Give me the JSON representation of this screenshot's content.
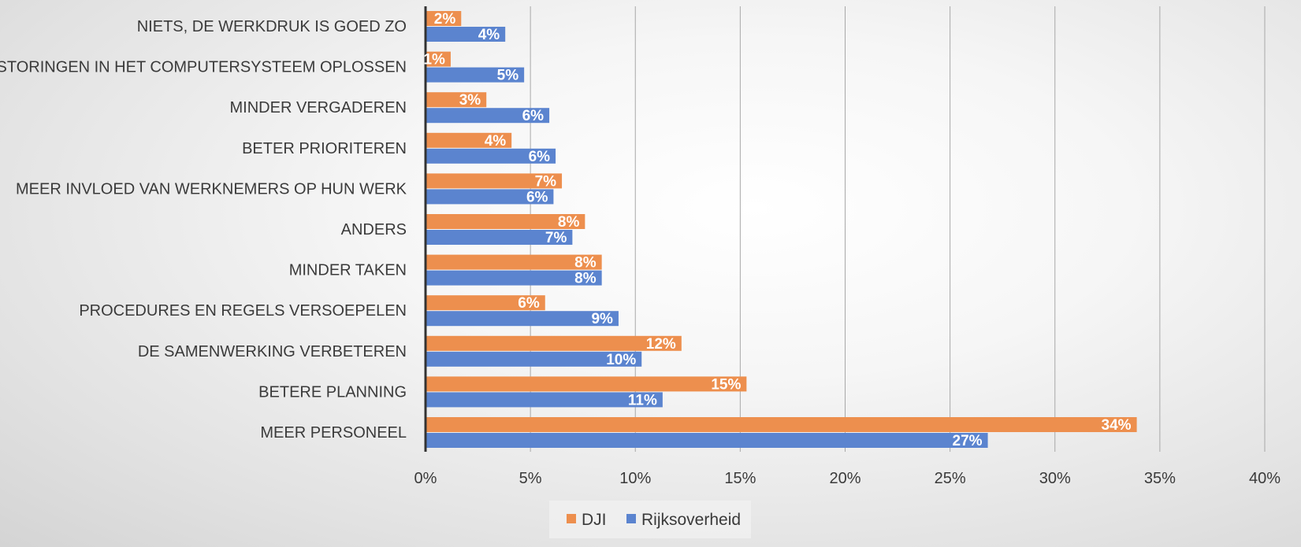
{
  "chart_data": {
    "type": "bar",
    "orientation": "horizontal",
    "categories": [
      "NIETS, DE WERKDRUK IS GOED ZO",
      "STORINGEN IN HET COMPUTERSYSTEEM OPLOSSEN",
      "MINDER VERGADEREN",
      "BETER PRIORITEREN",
      "MEER INVLOED VAN WERKNEMERS OP HUN WERK",
      "ANDERS",
      "MINDER TAKEN",
      "PROCEDURES EN REGELS VERSOEPELEN",
      "DE SAMENWERKING VERBETEREN",
      "BETERE PLANNING",
      "MEER PERSONEEL"
    ],
    "series": [
      {
        "name": "DJI",
        "color": "#ED8F4E",
        "values": [
          1.7,
          1.2,
          2.9,
          4.1,
          6.5,
          7.6,
          8.4,
          5.7,
          12.2,
          15.3,
          33.9
        ],
        "labels": [
          "2%",
          "1%",
          "3%",
          "4%",
          "7%",
          "8%",
          "8%",
          "6%",
          "12%",
          "15%",
          "34%"
        ]
      },
      {
        "name": "Rijksoverheid",
        "color": "#5B84CF",
        "values": [
          3.8,
          4.7,
          5.9,
          6.2,
          6.1,
          7.0,
          8.4,
          9.2,
          10.3,
          11.3,
          26.8
        ],
        "labels": [
          "4%",
          "5%",
          "6%",
          "6%",
          "6%",
          "7%",
          "8%",
          "9%",
          "10%",
          "11%",
          "27%"
        ]
      }
    ],
    "xlim": [
      0,
      40
    ],
    "x_ticks": [
      "0%",
      "5%",
      "10%",
      "15%",
      "20%",
      "25%",
      "30%",
      "35%",
      "40%"
    ],
    "grid": true,
    "legend_position": "bottom"
  }
}
